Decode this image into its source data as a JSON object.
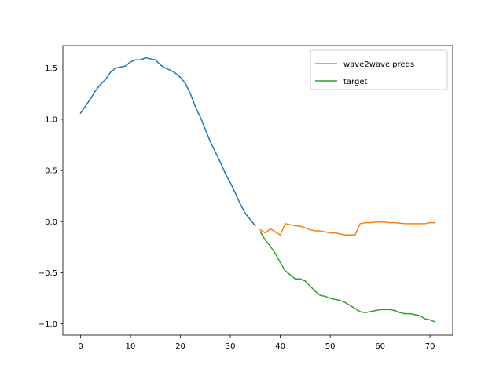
{
  "chart_data": {
    "type": "line",
    "title": "",
    "xlabel": "",
    "ylabel": "",
    "xlim": [
      -3.55,
      74.55
    ],
    "ylim": [
      -1.11,
      1.72
    ],
    "x_ticks": [
      0,
      10,
      20,
      30,
      40,
      50,
      60,
      70
    ],
    "y_ticks": [
      -1.0,
      -0.5,
      0.0,
      0.5,
      1.0,
      1.5
    ],
    "x_tick_labels": [
      "0",
      "10",
      "20",
      "30",
      "40",
      "50",
      "60",
      "70"
    ],
    "y_tick_labels": [
      "−1.0",
      "−0.5",
      "0.0",
      "0.5",
      "1.0",
      "1.5"
    ],
    "legend_position": "top-right",
    "grid": false,
    "series": [
      {
        "name": "",
        "color": "#1f77b4",
        "x": [
          0,
          1,
          2,
          3,
          4,
          5,
          6,
          7,
          8,
          9,
          10,
          11,
          12,
          13,
          14,
          15,
          16,
          17,
          18,
          19,
          20,
          21,
          22,
          23,
          24,
          25,
          26,
          27,
          28,
          29,
          30,
          31,
          32,
          33,
          34,
          35
        ],
        "values": [
          1.06,
          1.13,
          1.2,
          1.28,
          1.34,
          1.39,
          1.46,
          1.5,
          1.51,
          1.52,
          1.56,
          1.58,
          1.58,
          1.6,
          1.59,
          1.58,
          1.53,
          1.5,
          1.48,
          1.45,
          1.41,
          1.35,
          1.25,
          1.12,
          1.02,
          0.9,
          0.78,
          0.68,
          0.58,
          0.47,
          0.38,
          0.28,
          0.17,
          0.08,
          0.02,
          -0.04
        ]
      },
      {
        "name": "wave2wave preds",
        "color": "#ff7f0e",
        "x": [
          36,
          37,
          38,
          39,
          40,
          41,
          42,
          43,
          44,
          45,
          46,
          47,
          48,
          49,
          50,
          51,
          52,
          53,
          54,
          55,
          56,
          57,
          58,
          59,
          60,
          61,
          62,
          63,
          64,
          65,
          66,
          67,
          68,
          69,
          70,
          71
        ],
        "values": [
          -0.08,
          -0.11,
          -0.07,
          -0.1,
          -0.13,
          -0.02,
          -0.03,
          -0.04,
          -0.045,
          -0.06,
          -0.08,
          -0.09,
          -0.09,
          -0.1,
          -0.11,
          -0.11,
          -0.12,
          -0.13,
          -0.13,
          -0.13,
          -0.02,
          -0.01,
          -0.01,
          -0.005,
          -0.005,
          -0.005,
          -0.01,
          -0.01,
          -0.015,
          -0.02,
          -0.02,
          -0.02,
          -0.02,
          -0.02,
          -0.01,
          -0.01
        ]
      },
      {
        "name": "target",
        "color": "#2ca02c",
        "x": [
          36,
          37,
          38,
          39,
          40,
          41,
          42,
          43,
          44,
          45,
          46,
          47,
          48,
          49,
          50,
          51,
          52,
          53,
          54,
          55,
          56,
          57,
          58,
          59,
          60,
          61,
          62,
          63,
          64,
          65,
          66,
          67,
          68,
          69,
          70,
          71
        ],
        "values": [
          -0.1,
          -0.18,
          -0.24,
          -0.31,
          -0.4,
          -0.48,
          -0.52,
          -0.56,
          -0.56,
          -0.58,
          -0.63,
          -0.68,
          -0.72,
          -0.73,
          -0.75,
          -0.76,
          -0.77,
          -0.79,
          -0.82,
          -0.85,
          -0.88,
          -0.89,
          -0.88,
          -0.87,
          -0.86,
          -0.86,
          -0.86,
          -0.87,
          -0.89,
          -0.9,
          -0.9,
          -0.91,
          -0.92,
          -0.95,
          -0.96,
          -0.98
        ]
      }
    ]
  }
}
